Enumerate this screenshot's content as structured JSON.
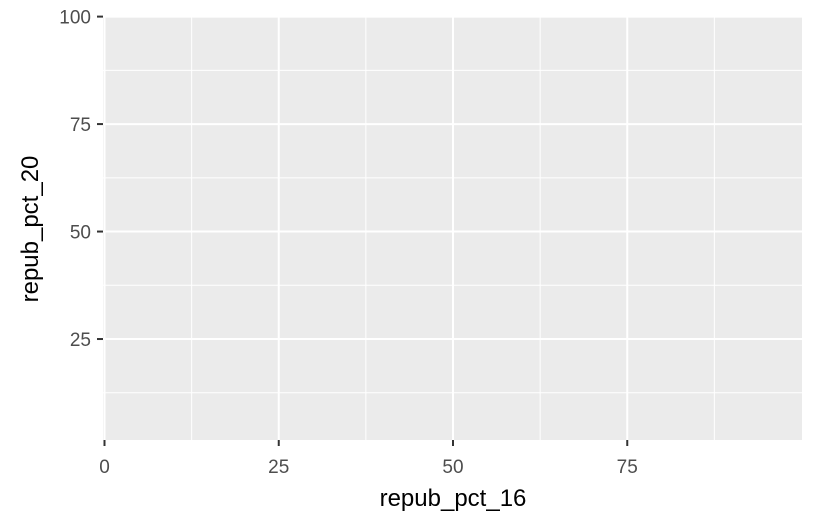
{
  "chart_data": {
    "type": "scatter",
    "title": "",
    "xlabel": "repub_pct_16",
    "ylabel": "repub_pct_20",
    "xlim": [
      0,
      100
    ],
    "ylim": [
      0,
      100
    ],
    "x_ticks": [
      0,
      25,
      50,
      75
    ],
    "y_ticks": [
      25,
      50,
      75,
      100
    ],
    "x_tick_labels": [
      "0",
      "25",
      "50",
      "75"
    ],
    "y_tick_labels": [
      "25",
      "50",
      "75",
      "100"
    ],
    "x_minor_ticks": [
      12.5,
      37.5,
      62.5,
      87.5
    ],
    "y_minor_ticks": [
      12.5,
      37.5,
      62.5,
      87.5
    ],
    "series": [
      {
        "x": [],
        "y": []
      }
    ],
    "grid": true,
    "legend": "none",
    "colors": {
      "panel_background": "#EBEBEB",
      "grid_major": "#FFFFFF",
      "grid_minor": "#FFFFFF",
      "tick_label": "#4D4D4D",
      "axis_tick": "#333333",
      "axis_title": "#000000"
    }
  }
}
